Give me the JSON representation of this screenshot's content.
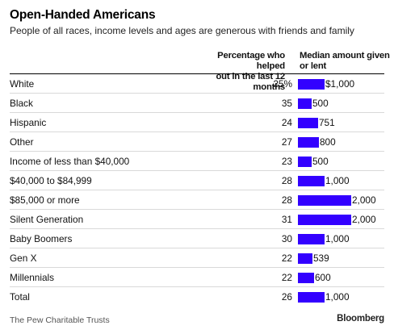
{
  "header": {
    "title": "Open-Handed Americans",
    "subtitle": "People of all races, income levels and ages are generous with friends and family"
  },
  "columns": {
    "pct_line1": "Percentage who helped",
    "pct_line2": "out in the last 12 months",
    "median_line1": "Median amount given",
    "median_line2": "or lent"
  },
  "chart_data": {
    "type": "bar",
    "categories": [
      "White",
      "Black",
      "Hispanic",
      "Other",
      "Income of less than $40,000",
      "$40,000 to $84,999",
      "$85,000 or more",
      "Silent Generation",
      "Baby Boomers",
      "Gen X",
      "Millennials",
      "Total"
    ],
    "percent_labels": [
      "25%",
      "35",
      "24",
      "27",
      "23",
      "28",
      "28",
      "31",
      "30",
      "22",
      "22",
      "26"
    ],
    "percent_values": [
      25,
      35,
      24,
      27,
      23,
      28,
      28,
      31,
      30,
      22,
      22,
      26
    ],
    "value_labels": [
      "$1,000",
      "500",
      "751",
      "800",
      "500",
      "1,000",
      "2,000",
      "2,000",
      "1,000",
      "539",
      "600",
      "1,000"
    ],
    "values": [
      1000,
      500,
      751,
      800,
      500,
      1000,
      2000,
      2000,
      1000,
      539,
      600,
      1000
    ],
    "xlim": [
      0,
      2000
    ],
    "bar_color": "#3300ff"
  },
  "footer": {
    "source": "The Pew Charitable Trusts",
    "brand": "Bloomberg"
  }
}
